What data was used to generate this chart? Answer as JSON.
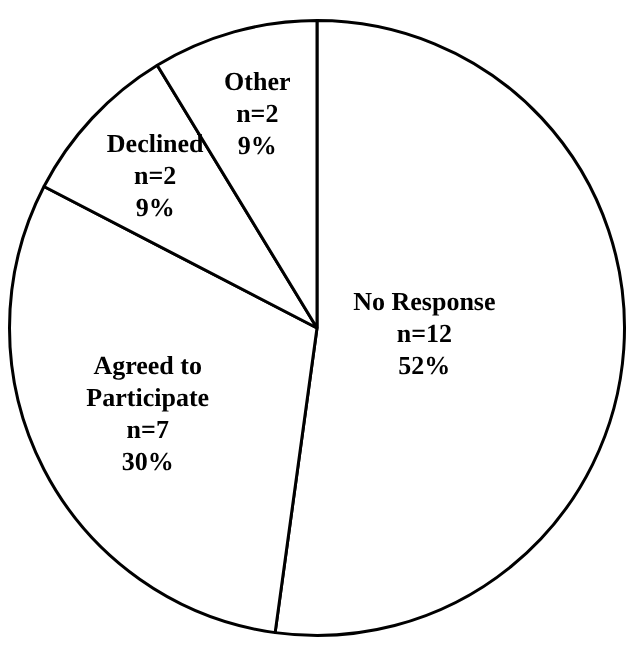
{
  "chart_data": {
    "type": "pie",
    "categories": [
      "No Response",
      "Agreed to Participate",
      "Declined",
      "Other"
    ],
    "values": [
      12,
      7,
      2,
      2
    ],
    "value_labels": [
      "n=12\n52%",
      "n=7\n30%",
      "n=2\n9%",
      "n=2\n9%"
    ],
    "colors": [
      "#ffffff",
      "#ffffff",
      "#ffffff",
      "#ffffff"
    ],
    "legend": false
  }
}
